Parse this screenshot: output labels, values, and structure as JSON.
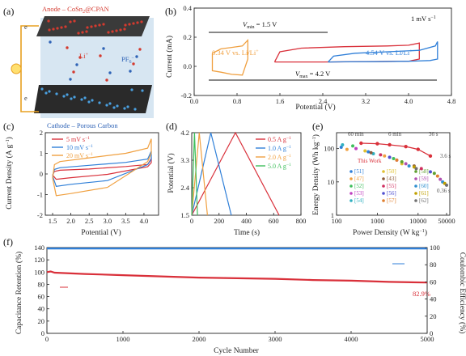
{
  "chart_data": [
    {
      "panel": "(a)",
      "type": "schematic",
      "labels": {
        "anode": "Anode – CoSn",
        "anode_sub": "2",
        "anode_tail": "@CPAN",
        "ion_li": "Li",
        "ion_li_sup": "+",
        "ion_pf": "PF",
        "ion_pf_sub": "6",
        "ion_pf_sup": "−",
        "e1": "e",
        "e2": "e",
        "cathode": "Cathode – Porous Carbon"
      },
      "colors": {
        "anode": "#d43a2f",
        "cathode": "#2f63b6",
        "electrolyte": "#d7e6f2"
      }
    },
    {
      "panel": "(b)",
      "type": "line",
      "xlabel": "Potential (V)",
      "ylabel": "Current (mA)",
      "xlim": [
        0,
        4.8
      ],
      "ylim": [
        -0.2,
        0.4
      ],
      "xticks": [
        0.0,
        0.8,
        1.6,
        2.4,
        3.2,
        4.0,
        4.8
      ],
      "yticks": [
        -0.2,
        0.0,
        0.2,
        0.4
      ],
      "annotations": {
        "rate": "1 mV s",
        "rate_sup": "−1",
        "vmin": "V",
        "vmin_sub": "min",
        "vmin_val": " = 1.5 V",
        "vmax": "V",
        "vmax_sub": "max",
        "vmax_val": " = 4.2 V",
        "orange": "0.34 V vs. Li/Li",
        "orange_sup": "+",
        "blue": "4.54 V vs. Li/Li",
        "blue_sup": "+"
      },
      "series": [
        {
          "color": "#f0a040",
          "x": [
            0.34,
            0.5,
            0.7,
            0.9,
            1.0,
            1.0,
            0.9,
            0.7,
            0.5,
            0.34,
            0.34
          ],
          "y": [
            0.09,
            0.12,
            0.13,
            0.14,
            0.18,
            0.05,
            -0.06,
            -0.055,
            -0.04,
            -0.03,
            0.09
          ]
        },
        {
          "color": "#d9303a",
          "x": [
            1.5,
            1.6,
            2.0,
            2.8,
            3.6,
            4.0,
            4.2,
            4.2,
            4.0,
            3.2,
            2.4,
            1.8,
            1.55,
            1.5
          ],
          "y": [
            0.03,
            0.1,
            0.125,
            0.135,
            0.14,
            0.145,
            0.16,
            0.05,
            0.035,
            0.032,
            0.03,
            0.03,
            0.03,
            0.03
          ]
        },
        {
          "color": "#2f7fd8",
          "x": [
            2.5,
            2.6,
            3.0,
            3.6,
            4.2,
            4.5,
            4.54,
            4.54,
            4.4,
            4.0,
            3.4,
            2.8,
            2.55,
            2.5
          ],
          "y": [
            0.03,
            0.07,
            0.09,
            0.1,
            0.11,
            0.14,
            0.17,
            0.05,
            0.04,
            0.035,
            0.032,
            0.031,
            0.03,
            0.03
          ]
        }
      ]
    },
    {
      "panel": "(c)",
      "type": "line",
      "xlabel": "Potential (V)",
      "ylabel": "Current Density (A g",
      "ylabel_sup": "−1",
      "ylabel_tail": ")",
      "xlim": [
        1.3,
        4.4
      ],
      "ylim": [
        -2,
        2
      ],
      "xticks": [
        1.5,
        2.0,
        2.5,
        3.0,
        3.5,
        4.0
      ],
      "yticks": [
        -2,
        -1,
        0,
        1,
        2
      ],
      "legend": [
        "5 mV s",
        "10 mV s",
        "20 mV s"
      ],
      "legend_sup": "−1",
      "series": [
        {
          "name": "5 mV s⁻¹",
          "color": "#d9303a",
          "x": [
            1.5,
            1.55,
            1.7,
            2.5,
            3.5,
            4.1,
            4.2,
            4.2,
            4.1,
            3.0,
            2.0,
            1.6,
            1.5
          ],
          "y": [
            -0.05,
            0.12,
            0.18,
            0.24,
            0.36,
            0.46,
            0.75,
            0.55,
            0.35,
            -0.02,
            -0.18,
            -0.26,
            -0.05
          ]
        },
        {
          "name": "10 mV s⁻¹",
          "color": "#2f7fd8",
          "x": [
            1.5,
            1.55,
            1.7,
            2.5,
            3.5,
            4.1,
            4.2,
            4.2,
            4.1,
            3.0,
            2.0,
            1.6,
            1.5
          ],
          "y": [
            -0.1,
            0.22,
            0.3,
            0.42,
            0.56,
            0.72,
            1.1,
            0.7,
            0.45,
            -0.32,
            -0.5,
            -0.6,
            -0.1
          ]
        },
        {
          "name": "20 mV s⁻¹",
          "color": "#f0a040",
          "x": [
            1.5,
            1.55,
            1.7,
            2.5,
            3.5,
            4.1,
            4.2,
            4.2,
            4.1,
            3.0,
            2.0,
            1.6,
            1.5
          ],
          "y": [
            -0.2,
            0.45,
            0.6,
            0.78,
            1.0,
            1.25,
            1.7,
            1.0,
            0.6,
            -0.65,
            -0.95,
            -1.05,
            -0.2
          ]
        }
      ]
    },
    {
      "panel": "(d)",
      "type": "line",
      "xlabel": "Time (s)",
      "ylabel": "Potential (V)",
      "xlim": [
        0,
        800
      ],
      "ylim": [
        1.5,
        4.2
      ],
      "xticks": [
        0,
        200,
        400,
        600,
        800
      ],
      "yticks": [
        1.5,
        2.4,
        3.3,
        4.2
      ],
      "yticklabels": [
        "1.5",
        "2.4",
        "3.3",
        "4.2"
      ],
      "extra_ytick_labels": [
        "1.8",
        "2.7",
        "3.6"
      ],
      "legend": [
        "0.5 A g",
        "1.0 A g",
        "2.0 A g",
        "5.0 A g"
      ],
      "legend_sup": "−1",
      "series": [
        {
          "name": "0.5 A g⁻¹",
          "color": "#d9303a",
          "x": [
            0,
            320,
            640
          ],
          "y": [
            1.5,
            4.2,
            1.5
          ]
        },
        {
          "name": "1.0 A g⁻¹",
          "color": "#2f7fd8",
          "x": [
            0,
            140,
            290
          ],
          "y": [
            1.5,
            4.2,
            1.5
          ]
        },
        {
          "name": "2.0 A g⁻¹",
          "color": "#f0a040",
          "x": [
            0,
            55,
            115
          ],
          "y": [
            1.5,
            4.2,
            1.5
          ]
        },
        {
          "name": "5.0 A g⁻¹",
          "color": "#3fbf5c",
          "x": [
            0,
            20,
            42
          ],
          "y": [
            1.5,
            4.2,
            1.5
          ]
        }
      ]
    },
    {
      "panel": "(e)",
      "type": "scatter",
      "xlabel": "Power Density (W kg",
      "xlabel_sup": "−1",
      "xlabel_tail": ")",
      "ylabel": "Energy Density (Wh kg",
      "ylabel_sup": "−1",
      "ylabel_tail": ")",
      "xscale": "log",
      "yscale": "log",
      "xlim": [
        100,
        60000
      ],
      "ylim": [
        1,
        300
      ],
      "xticks": [
        100,
        1000,
        10000,
        50000
      ],
      "xticklabels": [
        "100",
        "1000",
        "10000",
        "50000"
      ],
      "yticks": [
        1,
        10,
        100
      ],
      "yticklabels": [
        "1",
        "10",
        "100"
      ],
      "time_labels": [
        "60 min",
        "6 min",
        "36 s",
        "3.6 s",
        "0.36 s"
      ],
      "this_work_label": "This Work",
      "this_work": {
        "color": "#d9303a",
        "x": [
          400,
          1000,
          2000,
          5000,
          10000,
          20000
        ],
        "y": [
          145,
          140,
          130,
          115,
          95,
          60
        ]
      },
      "refs": [
        {
          "label": "[51]",
          "color": "#2f7fd8",
          "x": [
            130,
            600
          ],
          "y": [
            110,
            80
          ]
        },
        {
          "label": "[47]",
          "color": "#f0a040",
          "x": [
            180,
            1500
          ],
          "y": [
            95,
            60
          ]
        },
        {
          "label": "[52]",
          "color": "#3fbf5c",
          "x": [
            250,
            2500
          ],
          "y": [
            120,
            50
          ]
        },
        {
          "label": "[53]",
          "color": "#c040c0",
          "x": [
            300,
            3000
          ],
          "y": [
            100,
            45
          ]
        },
        {
          "label": "[54]",
          "color": "#30b0c0",
          "x": [
            140,
            800
          ],
          "y": [
            130,
            70
          ]
        },
        {
          "label": "[50]",
          "color": "#e0c030",
          "x": [
            500,
            4000
          ],
          "y": [
            85,
            35
          ]
        },
        {
          "label": "[43]",
          "color": "#8a5a3a",
          "x": [
            700,
            8000
          ],
          "y": [
            75,
            30
          ]
        },
        {
          "label": "[55]",
          "color": "#d03060",
          "x": [
            1200,
            12000
          ],
          "y": [
            65,
            25
          ]
        },
        {
          "label": "[56]",
          "color": "#5050d0",
          "x": [
            2000,
            20000
          ],
          "y": [
            55,
            20
          ]
        },
        {
          "label": "[57]",
          "color": "#e08030",
          "x": [
            3000,
            30000
          ],
          "y": [
            45,
            15
          ]
        },
        {
          "label": "[58]",
          "color": "#60a030",
          "x": [
            4000,
            25000
          ],
          "y": [
            40,
            18
          ]
        },
        {
          "label": "[59]",
          "color": "#b050b0",
          "x": [
            5000,
            35000
          ],
          "y": [
            35,
            12
          ]
        },
        {
          "label": "[60]",
          "color": "#3090d0",
          "x": [
            6000,
            40000
          ],
          "y": [
            30,
            10
          ]
        },
        {
          "label": "[61]",
          "color": "#c0a000",
          "x": [
            8000,
            45000
          ],
          "y": [
            28,
            9
          ]
        },
        {
          "label": "[62]",
          "color": "#707070",
          "x": [
            9000,
            50000
          ],
          "y": [
            25,
            8
          ]
        }
      ]
    },
    {
      "panel": "(f)",
      "type": "scatter",
      "xlabel": "Cycle Number",
      "ylabel": "Capacitance Retention (%)",
      "y2label": "Coulombic Efficiency (%)",
      "xlim": [
        0,
        5000
      ],
      "ylim": [
        0,
        140
      ],
      "y2lim": [
        0,
        100
      ],
      "xticks": [
        0,
        1000,
        2000,
        3000,
        4000,
        5000
      ],
      "yticks": [
        0,
        20,
        40,
        60,
        80,
        100,
        120,
        140
      ],
      "y2ticks": [
        0,
        20,
        40,
        60,
        80,
        100
      ],
      "annotation": "82.9%",
      "series": [
        {
          "name": "Capacitance Retention",
          "color": "#d9303a",
          "x": [
            0,
            50,
            100,
            500,
            1000,
            1500,
            2000,
            2500,
            3000,
            3500,
            4000,
            4500,
            5000
          ],
          "y": [
            100,
            101,
            99,
            97,
            95,
            93,
            91,
            90,
            89,
            87,
            86,
            84,
            82.9
          ]
        },
        {
          "name": "Coulombic Efficiency",
          "color": "#2f7fd8",
          "axis": "y2",
          "x": [
            0,
            500,
            1000,
            1500,
            2000,
            2500,
            3000,
            3500,
            4000,
            4500,
            5000
          ],
          "y": [
            99,
            99,
            99,
            99,
            99,
            99,
            99,
            99,
            99,
            99,
            99
          ]
        }
      ]
    }
  ]
}
